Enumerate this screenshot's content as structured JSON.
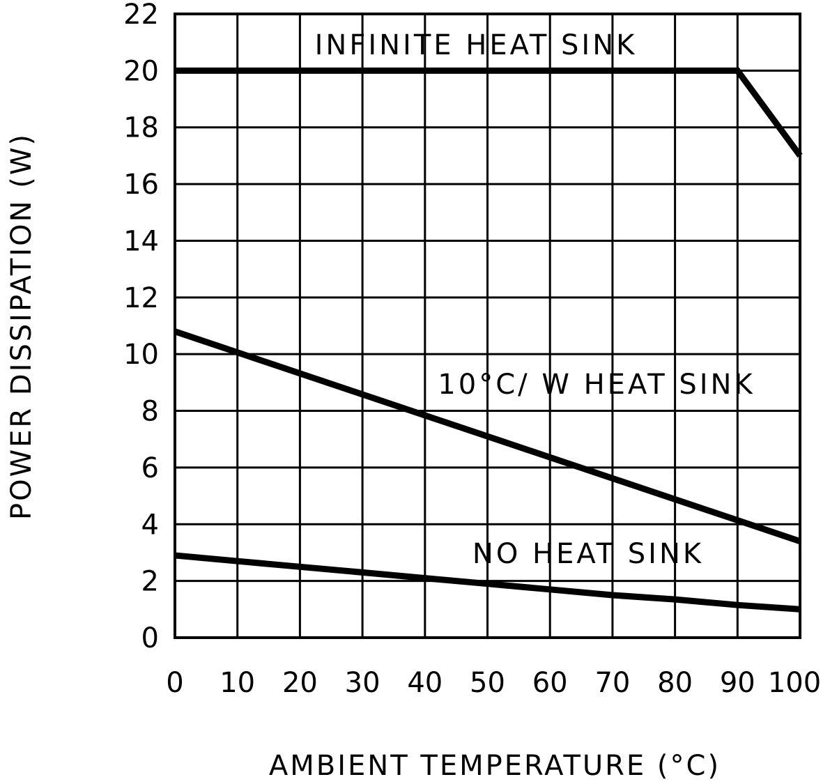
{
  "chart_data": {
    "type": "line",
    "title": "",
    "xlabel": "AMBIENT TEMPERATURE (°C)",
    "ylabel": "POWER DISSIPATION (W)",
    "xlim": [
      0,
      100
    ],
    "ylim": [
      0,
      22
    ],
    "xticks": [
      0,
      10,
      20,
      30,
      40,
      50,
      60,
      70,
      80,
      90,
      100
    ],
    "yticks": [
      0,
      2,
      4,
      6,
      8,
      10,
      12,
      14,
      16,
      18,
      20,
      22
    ],
    "grid": true,
    "legend": "none",
    "line_color": "#000000",
    "series": [
      {
        "name": "INFINITE HEAT SINK",
        "x": [
          0,
          90,
          100
        ],
        "y": [
          20,
          20,
          17
        ]
      },
      {
        "name": "10°C/ W HEAT SINK",
        "x": [
          0,
          100
        ],
        "y": [
          10.8,
          3.4
        ]
      },
      {
        "name": "NO HEAT SINK",
        "x": [
          0,
          10,
          20,
          30,
          40,
          50,
          60,
          70,
          80,
          90,
          100
        ],
        "y": [
          2.9,
          2.7,
          2.5,
          2.3,
          2.1,
          1.9,
          1.7,
          1.5,
          1.35,
          1.15,
          1.0
        ]
      }
    ]
  }
}
